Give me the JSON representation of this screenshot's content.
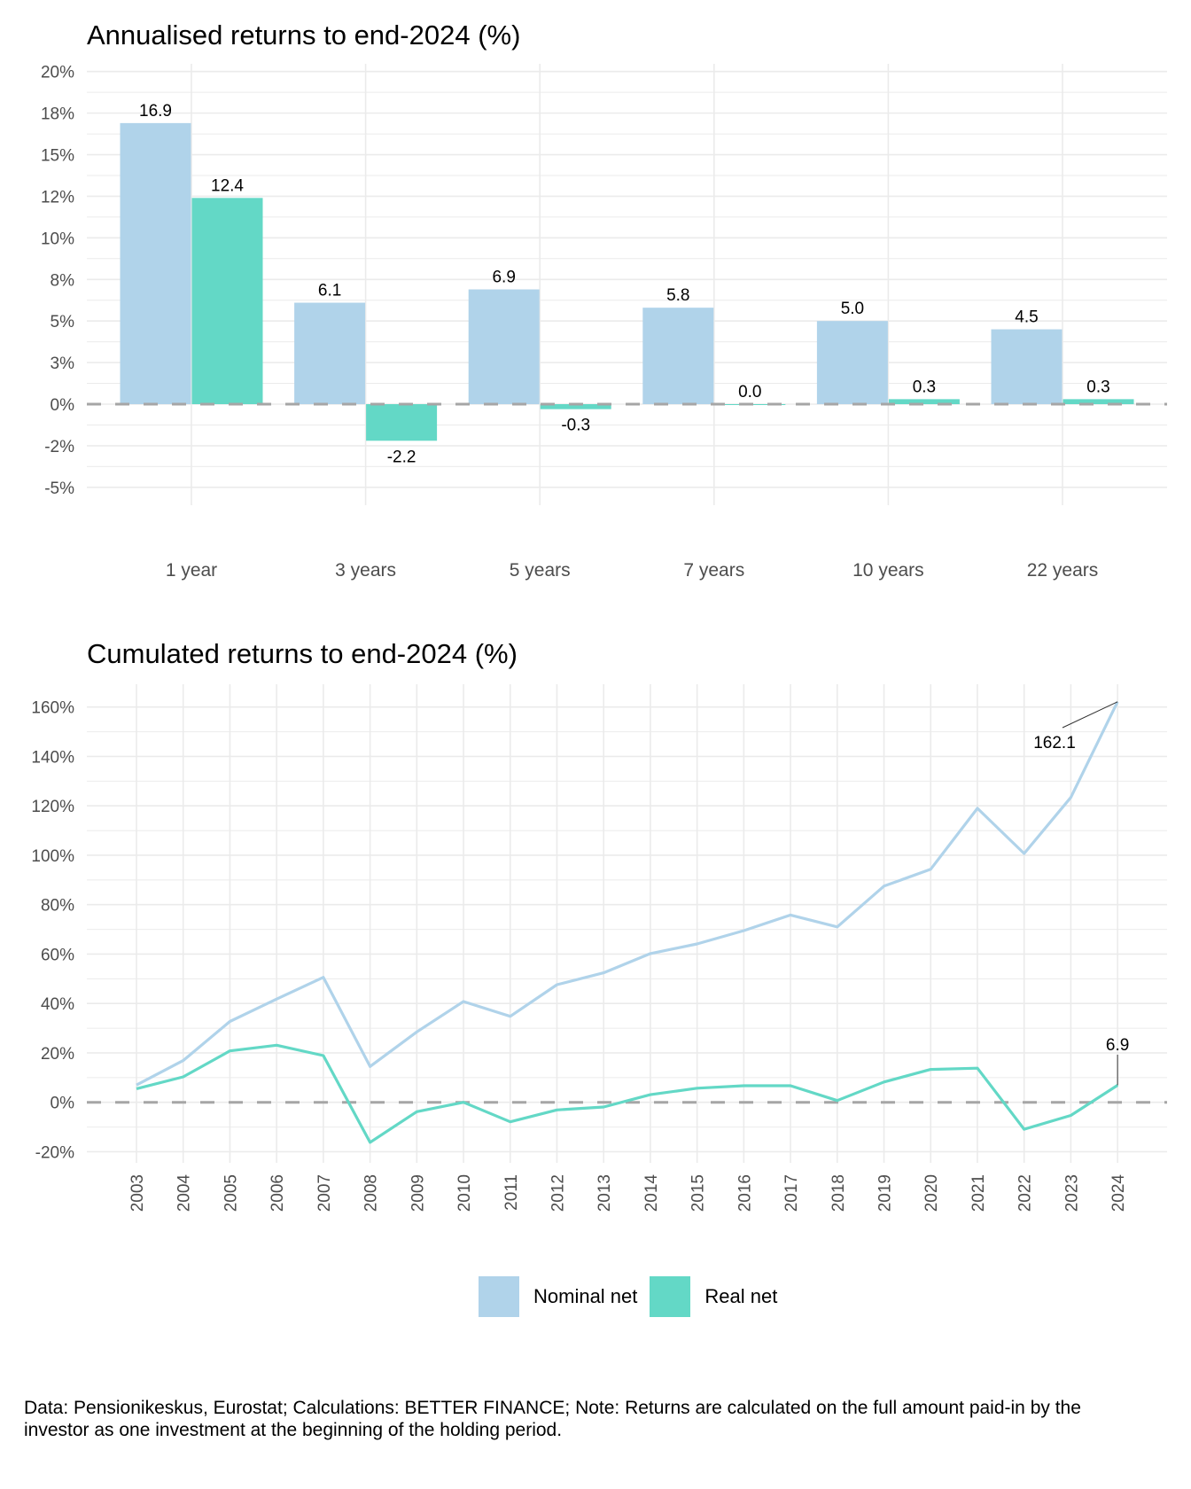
{
  "colors": {
    "nominal": "#b0d3ea",
    "real": "#63d8c6",
    "zero_line": "#a6a6a6",
    "grid": "#ebebeb",
    "axis_text": "#4d4d4d"
  },
  "legend": [
    {
      "label": "Nominal net",
      "color": "#b0d3ea"
    },
    {
      "label": "Real net",
      "color": "#63d8c6"
    }
  ],
  "footer": "Data: Pensionikeskus, Eurostat; Calculations: BETTER FINANCE; Note: Returns are calculated on the full amount paid-in by the investor as one investment at the beginning of the holding period.",
  "chart_data": [
    {
      "type": "bar",
      "title": "Annualised returns to end-2024 (%)",
      "xlabel": "",
      "ylabel": "",
      "ylim": [
        -5,
        20
      ],
      "yticks": [
        20,
        17.5,
        15,
        12.5,
        10,
        7.5,
        5,
        2.5,
        0,
        -2.5,
        -5
      ],
      "ytick_labels": [
        "20%",
        "18%",
        "15%",
        "12%",
        "10%",
        "8%",
        "5%",
        "3%",
        "0%",
        "-2%",
        "-5%"
      ],
      "grid": true,
      "zero_line": "dashed",
      "categories": [
        "1 year",
        "3 years",
        "5 years",
        "7 years",
        "10 years",
        "22 years"
      ],
      "series": [
        {
          "name": "Nominal net",
          "values": [
            16.9,
            6.1,
            6.9,
            5.8,
            5.0,
            4.5
          ],
          "labels": [
            "16.9",
            "6.1",
            "6.9",
            "5.8",
            "5.0",
            "4.5"
          ]
        },
        {
          "name": "Real net",
          "values": [
            12.4,
            -2.2,
            -0.3,
            0.0,
            0.3,
            0.3
          ],
          "labels": [
            "12.4",
            "-2.2",
            "-0.3",
            "0.0",
            "0.3",
            "0.3"
          ]
        }
      ]
    },
    {
      "type": "line",
      "title": "Cumulated returns to end-2024 (%)",
      "xlabel": "",
      "ylabel": "",
      "ylim": [
        -25,
        170
      ],
      "yticks": [
        160,
        140,
        120,
        100,
        80,
        60,
        40,
        20,
        0,
        -20
      ],
      "ytick_labels": [
        "160%",
        "140%",
        "120%",
        "100%",
        "80%",
        "60%",
        "40%",
        "20%",
        "0%",
        "-20%"
      ],
      "grid": true,
      "zero_line": "dashed",
      "x": [
        "2003",
        "2004",
        "2005",
        "2006",
        "2007",
        "2008",
        "2009",
        "2010",
        "2011",
        "2012",
        "2013",
        "2014",
        "2015",
        "2016",
        "2017",
        "2018",
        "2019",
        "2020",
        "2021",
        "2022",
        "2023",
        "2024"
      ],
      "series": [
        {
          "name": "Nominal net",
          "values": [
            7.0,
            16.9,
            32.7,
            41.8,
            50.6,
            14.5,
            28.5,
            40.8,
            34.8,
            47.6,
            52.4,
            60.2,
            64.1,
            69.5,
            75.8,
            71.0,
            87.5,
            94.3,
            119.0,
            100.7,
            123.4,
            162.1
          ]
        },
        {
          "name": "Real net",
          "values": [
            5.5,
            10.3,
            20.8,
            23.1,
            18.9,
            -16.2,
            -3.8,
            0.0,
            -7.9,
            -3.1,
            -1.9,
            3.1,
            5.7,
            6.7,
            6.7,
            0.7,
            8.2,
            13.3,
            13.8,
            -10.9,
            -5.3,
            6.9
          ]
        }
      ],
      "annotations": [
        {
          "series": "Nominal net",
          "x": "2024",
          "label": "162.1"
        },
        {
          "series": "Real net",
          "x": "2024",
          "label": "6.9"
        }
      ],
      "legend_position": "bottom"
    }
  ]
}
